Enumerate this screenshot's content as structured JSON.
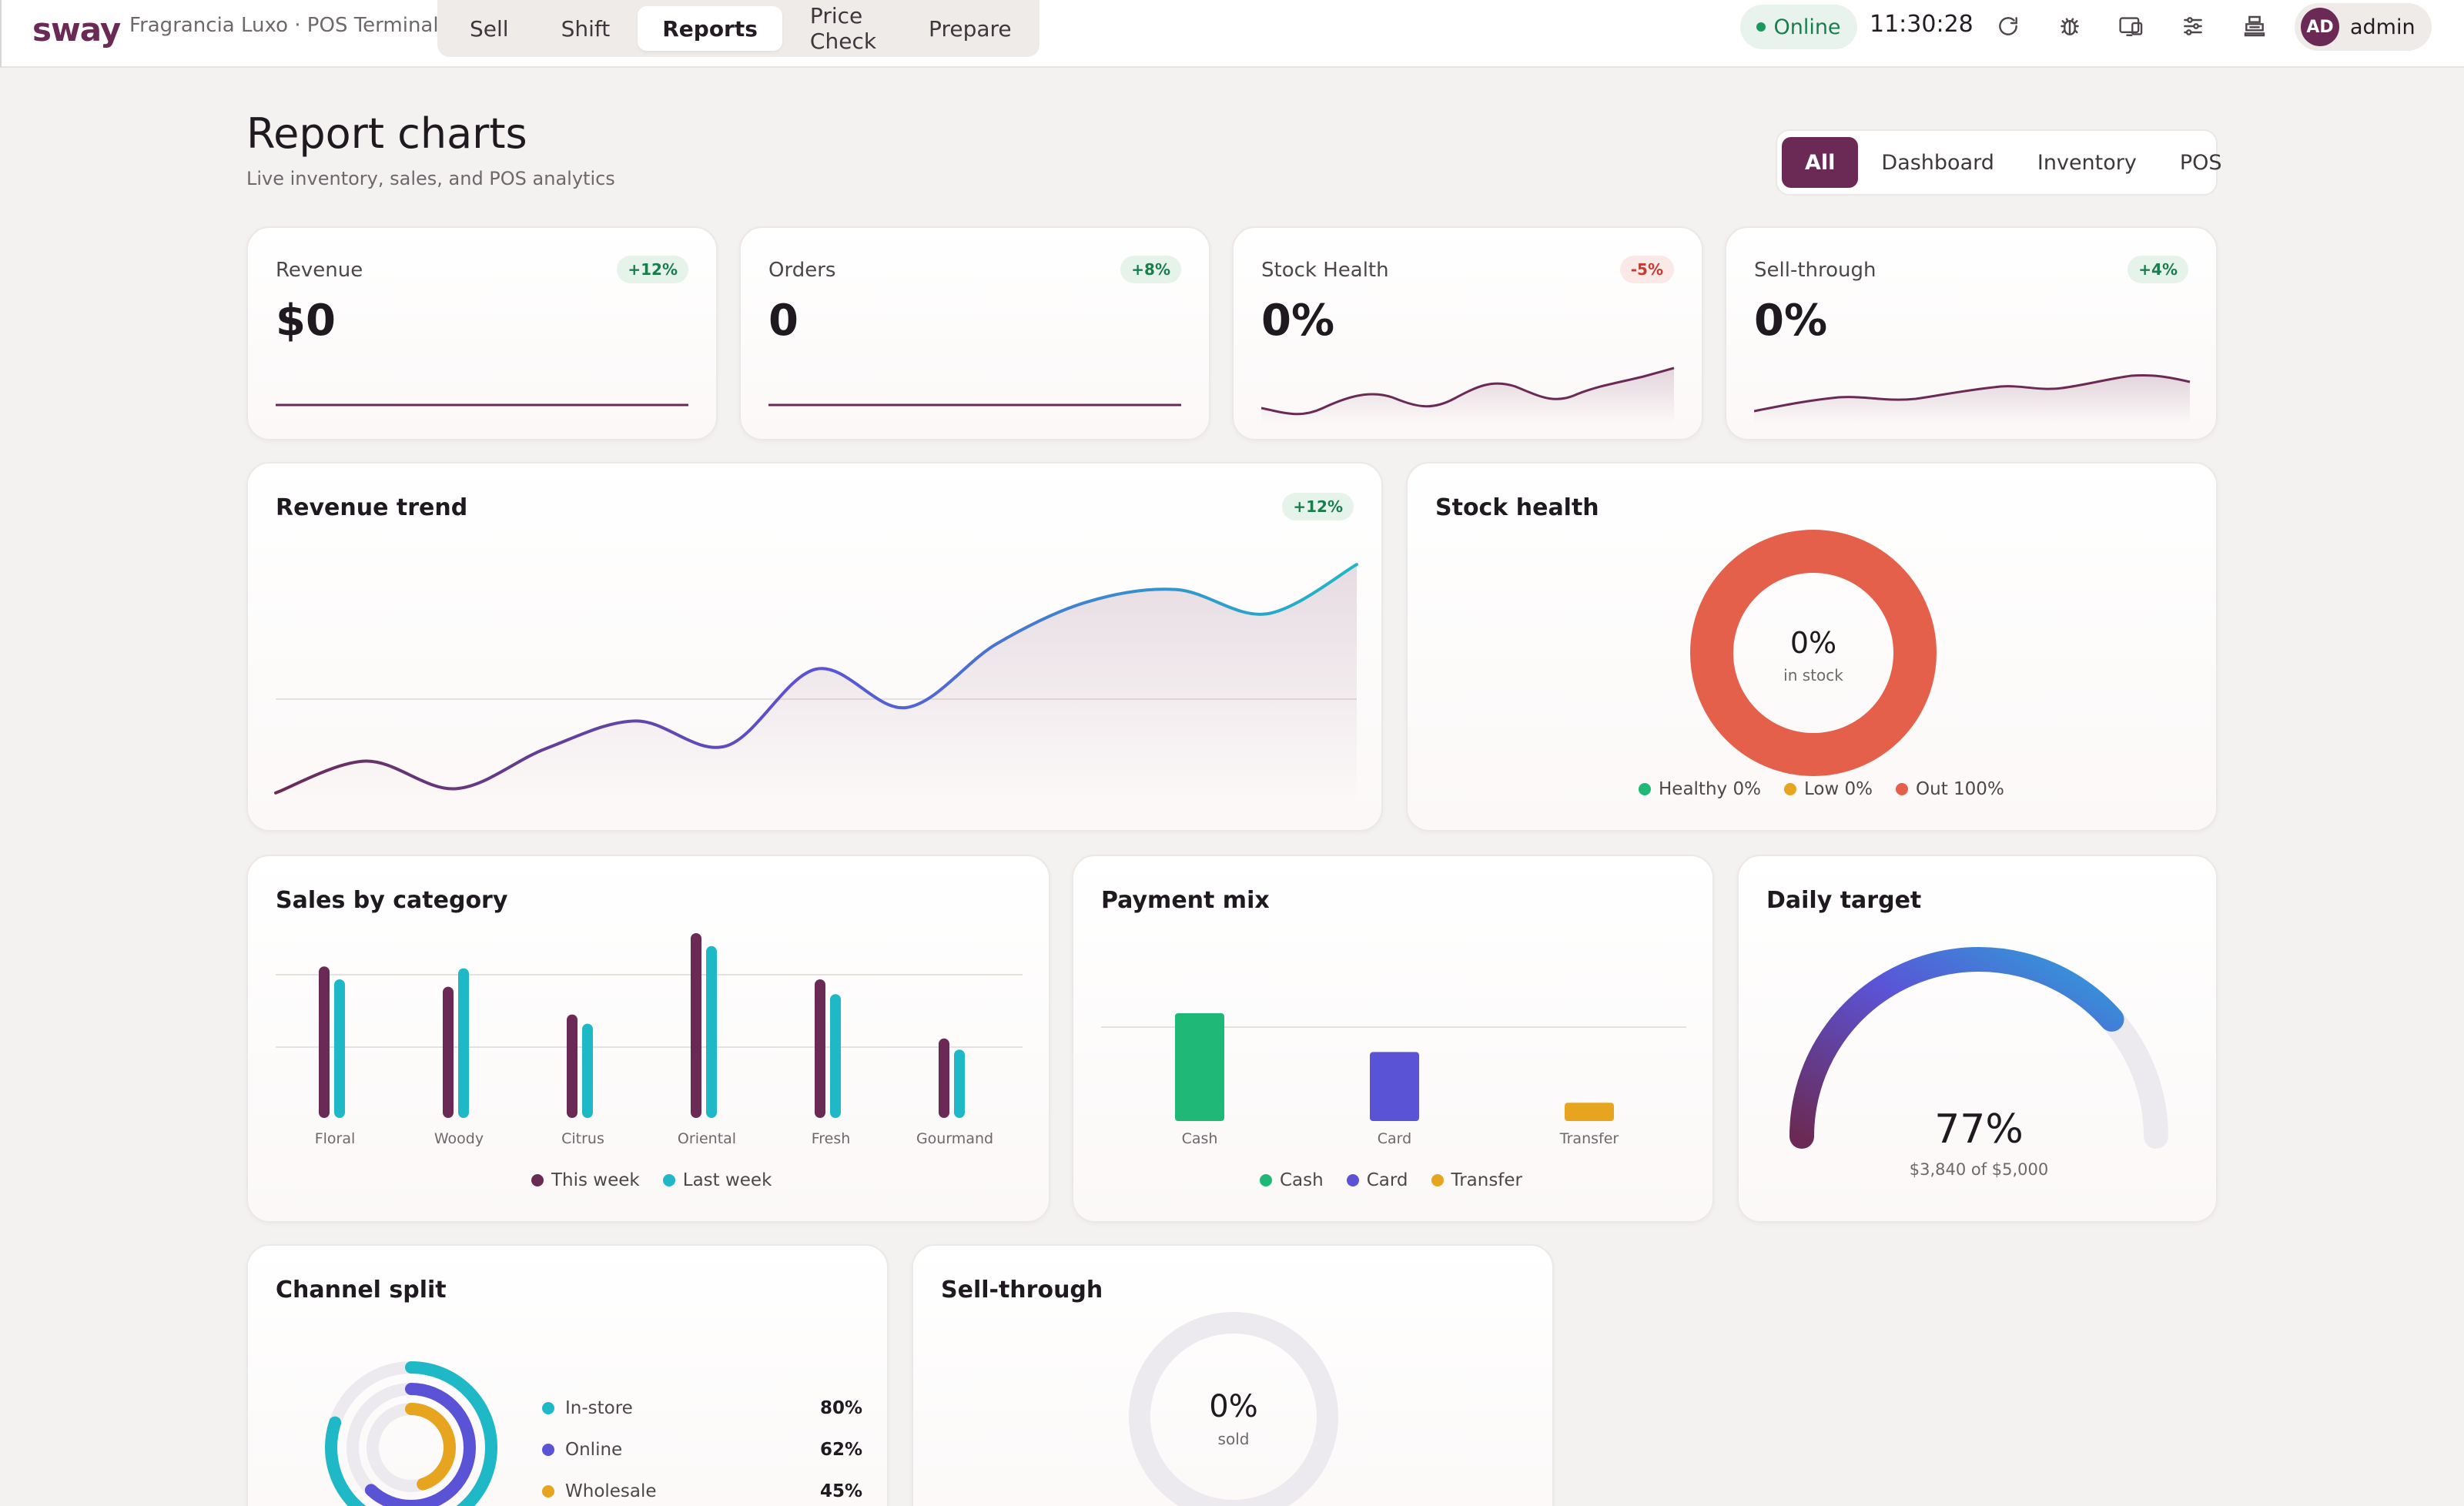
{
  "topbar": {
    "brand": "sway",
    "store": "Fragrancia Luxo · POS Terminal",
    "tabs": [
      "Sell",
      "Shift",
      "Reports",
      "Price Check",
      "Prepare"
    ],
    "active_tab": "Reports",
    "status": "Online",
    "time": "11:30:28",
    "icons": [
      "refresh-icon",
      "bug-icon",
      "display-icon",
      "sliders-icon",
      "printer-icon"
    ],
    "user": {
      "initials": "AD",
      "name": "admin"
    }
  },
  "header": {
    "title": "Report charts",
    "subtitle": "Live inventory, sales, and POS analytics",
    "filters": [
      "All",
      "Dashboard",
      "Inventory",
      "POS"
    ],
    "active_filter": "All"
  },
  "kpis": [
    {
      "label": "Revenue",
      "value": "$0",
      "badge": "+12%",
      "trend": "up"
    },
    {
      "label": "Orders",
      "value": "0",
      "badge": "+8%",
      "trend": "up"
    },
    {
      "label": "Stock Health",
      "value": "0%",
      "badge": "-5%",
      "trend": "down"
    },
    {
      "label": "Sell-through",
      "value": "0%",
      "badge": "+4%",
      "trend": "up"
    }
  ],
  "revenue_trend": {
    "title": "Revenue trend",
    "badge": "+12%"
  },
  "stock_health": {
    "title": "Stock health",
    "center_value": "0%",
    "center_label": "in stock",
    "legend": [
      "Healthy 0%",
      "Low 0%",
      "Out 100%"
    ]
  },
  "sales_by_category": {
    "title": "Sales by category",
    "legend": [
      "This week",
      "Last week"
    ]
  },
  "payment_mix": {
    "title": "Payment mix",
    "legend": [
      "Cash",
      "Card",
      "Transfer"
    ]
  },
  "daily_target": {
    "title": "Daily target",
    "value": "77%",
    "detail": "$3,840 of $5,000"
  },
  "channel_split": {
    "title": "Channel split",
    "rows": [
      {
        "label": "In-store",
        "value": "80%"
      },
      {
        "label": "Online",
        "value": "62%"
      },
      {
        "label": "Wholesale",
        "value": "45%"
      }
    ]
  },
  "sell_through": {
    "title": "Sell-through",
    "center_value": "0%",
    "center_label": "sold"
  },
  "colors": {
    "brand": "#6b2a55",
    "teal": "#1fb8c7",
    "indigo": "#5b53d6",
    "amber": "#e6a41f",
    "green": "#1fb877",
    "red": "#e5604a"
  },
  "chart_data": [
    {
      "type": "line",
      "title": "Revenue trend",
      "x": [
        1,
        2,
        3,
        4,
        5,
        6,
        7,
        8,
        9,
        10,
        11,
        12,
        13
      ],
      "series": [
        {
          "values": [
            2,
            40,
            7,
            55,
            88,
            58,
            150,
            104,
            180,
            230,
            245,
            216,
            275
          ]
        }
      ],
      "ylim": [
        0,
        300
      ]
    },
    {
      "type": "pie",
      "title": "Stock health",
      "categories": [
        "Healthy",
        "Low",
        "Out"
      ],
      "values": [
        0,
        0,
        100
      ]
    },
    {
      "type": "bar",
      "title": "Sales by category",
      "categories": [
        "Floral",
        "Woody",
        "Citrus",
        "Oriental",
        "Fresh",
        "Gourmand"
      ],
      "series": [
        {
          "name": "This week",
          "values": [
            82,
            71,
            56,
            100,
            75,
            43
          ]
        },
        {
          "name": "Last week",
          "values": [
            75,
            81,
            51,
            93,
            67,
            37
          ]
        }
      ],
      "ylim": [
        0,
        100
      ]
    },
    {
      "type": "bar",
      "title": "Payment mix",
      "categories": [
        "Cash",
        "Card",
        "Transfer"
      ],
      "values": [
        100,
        64,
        17
      ],
      "ylim": [
        0,
        100
      ]
    },
    {
      "type": "pie",
      "title": "Daily target",
      "categories": [
        "Achieved"
      ],
      "values": [
        77
      ],
      "max": 100
    },
    {
      "type": "pie",
      "title": "Channel split",
      "categories": [
        "In-store",
        "Online",
        "Wholesale"
      ],
      "values": [
        80,
        62,
        45
      ],
      "max": 100
    },
    {
      "type": "pie",
      "title": "Sell-through",
      "categories": [
        "Sold"
      ],
      "values": [
        0
      ],
      "max": 100
    }
  ]
}
